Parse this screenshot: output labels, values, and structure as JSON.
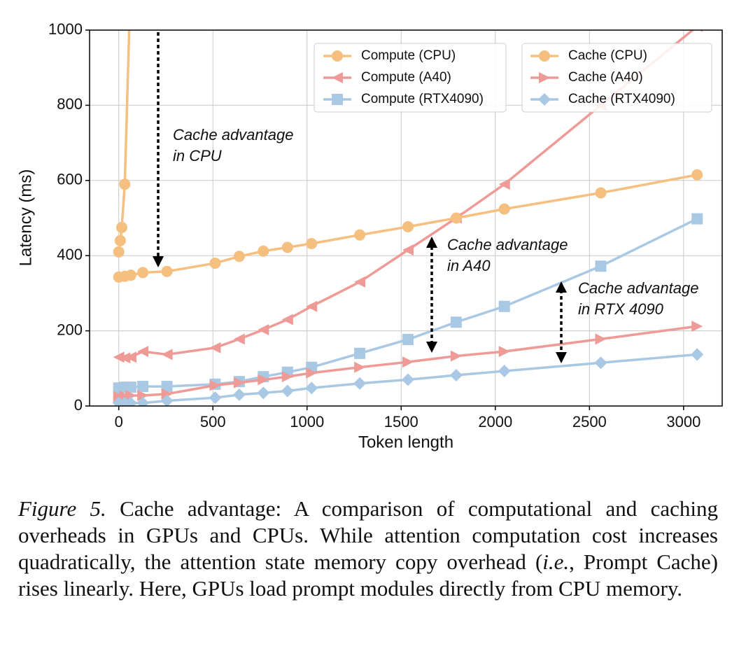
{
  "chart_data": {
    "type": "line",
    "x_label": "Token length",
    "y_label": "Latency (ms)",
    "xlim": [
      -155,
      3205
    ],
    "ylim": [
      0,
      1000
    ],
    "xticks": [
      0,
      500,
      1000,
      1500,
      2000,
      2500,
      3000
    ],
    "yticks": [
      0,
      200,
      400,
      600,
      800,
      1000
    ],
    "grid": true,
    "x": [
      0,
      32,
      64,
      128,
      256,
      512,
      640,
      768,
      896,
      1024,
      1280,
      1536,
      1792,
      2048,
      2560,
      3072
    ],
    "series": [
      {
        "name": "Compute (CPU)",
        "color": "#f5bf7f",
        "marker": "circle",
        "x": [
          0,
          8,
          16,
          32,
          64
        ],
        "values": [
          410,
          440,
          475,
          590,
          1150
        ]
      },
      {
        "name": "Compute (A40)",
        "color": "#ee9a96",
        "marker": "triangle-left",
        "values": [
          130,
          128,
          130,
          145,
          137,
          155,
          178,
          203,
          230,
          265,
          330,
          415,
          500,
          590,
          800,
          1010
        ]
      },
      {
        "name": "Compute (RTX4090)",
        "color": "#a8c8e4",
        "marker": "square",
        "values": [
          48,
          50,
          50,
          52,
          52,
          58,
          65,
          78,
          90,
          103,
          140,
          177,
          223,
          265,
          372,
          498
        ]
      },
      {
        "name": "Cache (CPU)",
        "color": "#f5bf7f",
        "marker": "circle",
        "values": [
          343,
          345,
          348,
          355,
          358,
          380,
          398,
          412,
          422,
          432,
          455,
          477,
          500,
          524,
          567,
          615
        ]
      },
      {
        "name": "Cache (A40)",
        "color": "#ee9a96",
        "marker": "triangle-right",
        "values": [
          25,
          26,
          28,
          28,
          32,
          55,
          62,
          70,
          78,
          88,
          103,
          117,
          133,
          145,
          178,
          212
        ]
      },
      {
        "name": "Cache (RTX4090)",
        "color": "#a8c8e4",
        "marker": "diamond",
        "values": [
          8,
          8,
          8,
          8,
          14,
          22,
          30,
          35,
          40,
          48,
          60,
          70,
          82,
          93,
          115,
          137
        ]
      }
    ],
    "annotations": [
      "Cache advantage",
      "in CPU",
      "Cache advantage",
      "in A40",
      "Cache advantage",
      "in RTX 4090"
    ]
  },
  "caption": {
    "label": "Figure 5.",
    "text_1": " Cache advantage: A comparison of computational and caching overheads in GPUs and CPUs. While attention computation cost increases quadratically, the attention state memory copy overhead (",
    "em": "i.e.",
    "text_2": ", Prompt Cache) rises linearly.  Here, GPUs load prompt modules directly from CPU memory."
  }
}
